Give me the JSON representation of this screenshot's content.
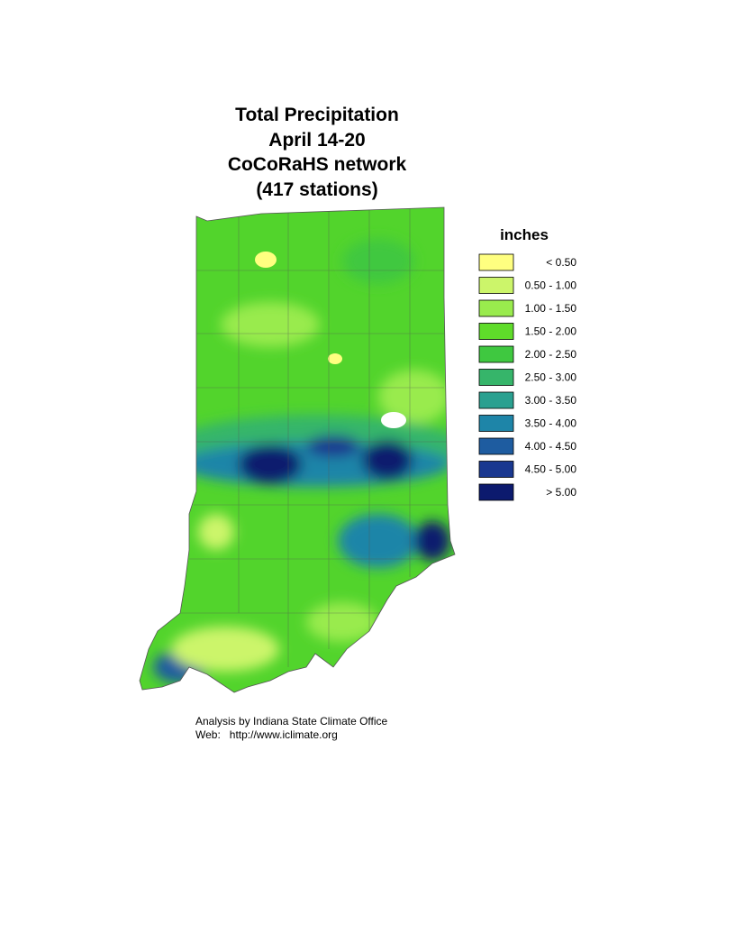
{
  "header": {
    "title_lines": [
      "Total Precipitation",
      "April 14-20",
      "CoCoRaHS network",
      "(417 stations)"
    ]
  },
  "legend": {
    "title": "inches",
    "entries": [
      {
        "label": "< 0.50",
        "color": "#ffff80"
      },
      {
        "label": "0.50 - 1.00",
        "color": "#ccf56a"
      },
      {
        "label": "1.00 - 1.50",
        "color": "#99eb4d"
      },
      {
        "label": "1.50 - 2.00",
        "color": "#5fdc2a"
      },
      {
        "label": "2.00 - 2.50",
        "color": "#3fc840"
      },
      {
        "label": "2.50 - 3.00",
        "color": "#36b56a"
      },
      {
        "label": "3.00 - 3.50",
        "color": "#2aa090"
      },
      {
        "label": "3.50 - 4.00",
        "color": "#1e85a8"
      },
      {
        "label": "4.00 - 4.50",
        "color": "#1e5ca0"
      },
      {
        "label": "4.50 - 5.00",
        "color": "#1a3890"
      },
      {
        "label": "> 5.00",
        "color": "#0c1a6e"
      }
    ]
  },
  "credits": [
    "Analysis by Indiana State Climate Office",
    "Web:   http://www.iclimate.org"
  ]
}
